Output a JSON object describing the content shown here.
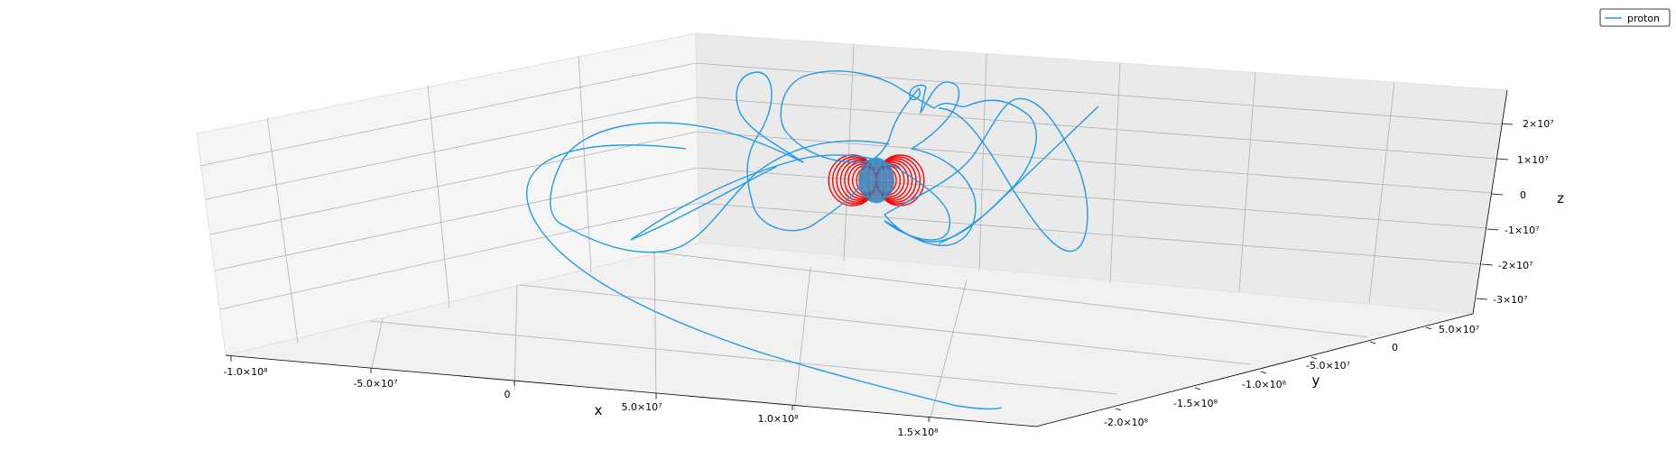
{
  "chart_data": {
    "type": "line",
    "projection": "3d",
    "axes": {
      "x": {
        "label": "x",
        "ticks": [
          {
            "value": -100000000,
            "label": "-1.0×10⁸"
          },
          {
            "value": -50000000,
            "label": "-5.0×10⁷"
          },
          {
            "value": 0,
            "label": "0"
          },
          {
            "value": 50000000,
            "label": "5.0×10⁷"
          },
          {
            "value": 100000000,
            "label": "1.0×10⁸"
          },
          {
            "value": 150000000,
            "label": "1.5×10⁸"
          }
        ]
      },
      "y": {
        "label": "y",
        "ticks": [
          {
            "value": -200000000,
            "label": "-2.0×10⁸"
          },
          {
            "value": -150000000,
            "label": "-1.5×10⁸"
          },
          {
            "value": -100000000,
            "label": "-1.0×10⁸"
          },
          {
            "value": -50000000,
            "label": "-5.0×10⁷"
          },
          {
            "value": 0,
            "label": "0"
          },
          {
            "value": 50000000,
            "label": "5.0×10⁷"
          }
        ]
      },
      "z": {
        "label": "z",
        "ticks": [
          {
            "value": 20000000,
            "label": "2×10⁷"
          },
          {
            "value": 10000000,
            "label": "1×10⁷"
          },
          {
            "value": 0,
            "label": "0"
          },
          {
            "value": -10000000,
            "label": "-1×10⁷"
          },
          {
            "value": -20000000,
            "label": "-2×10⁷"
          },
          {
            "value": -30000000,
            "label": "-3×10⁷"
          }
        ]
      }
    },
    "grid": true,
    "legend": {
      "position": "top-right",
      "entries": [
        "proton"
      ]
    },
    "series": [
      {
        "name": "proton",
        "color": "#1f9be8"
      }
    ],
    "field_lines_color": "#ff0000",
    "planet_color": "#4a6fa5"
  }
}
